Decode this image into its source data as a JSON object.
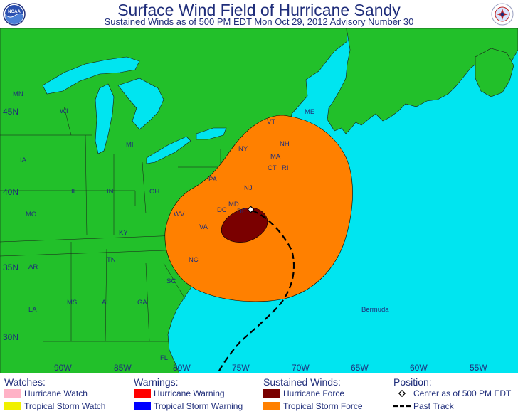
{
  "title": "Surface Wind Field of Hurricane Sandy",
  "subtitle": "Sustained Winds as of 500 PM EDT Mon Oct 29, 2012   Advisory Number 30",
  "logos": {
    "left": "noaa-logo",
    "right": "nws-logo"
  },
  "colors": {
    "land": "#22c02a",
    "water": "#00e5f0",
    "tropical_storm_force": "#ff8000",
    "hurricane_force": "#7a0000",
    "hurricane_watch": "#ffb2c6",
    "tropical_storm_watch": "#f0f000",
    "hurricane_warning": "#ff0000",
    "tropical_storm_warning": "#0000ff",
    "text": "#1f2d7a"
  },
  "map": {
    "longitude_labels": [
      "90W",
      "85W",
      "80W",
      "75W",
      "70W",
      "65W",
      "60W",
      "55W"
    ],
    "latitude_labels": [
      "45N",
      "40N",
      "35N",
      "30N"
    ],
    "state_labels": [
      "MN",
      "WI",
      "MI",
      "IA",
      "IL",
      "IN",
      "OH",
      "PA",
      "NY",
      "VT",
      "NH",
      "ME",
      "MA",
      "CT",
      "RI",
      "NJ",
      "MD",
      "DE",
      "DC",
      "WV",
      "VA",
      "KY",
      "MO",
      "TN",
      "NC",
      "SC",
      "AR",
      "GA",
      "AL",
      "MS",
      "LA",
      "FL"
    ],
    "place_labels": [
      "Bermuda"
    ]
  },
  "legend": {
    "watches": {
      "heading": "Watches:",
      "items": [
        "Hurricane Watch",
        "Tropical Storm Watch"
      ]
    },
    "warnings": {
      "heading": "Warnings:",
      "items": [
        "Hurricane Warning",
        "Tropical Storm Warning"
      ]
    },
    "sustained_winds": {
      "heading": "Sustained Winds:",
      "items": [
        "Hurricane Force",
        "Tropical Storm Force"
      ]
    },
    "position": {
      "heading": "Position:",
      "items": [
        "Center as of 500 PM EDT",
        "Past Track"
      ]
    }
  }
}
